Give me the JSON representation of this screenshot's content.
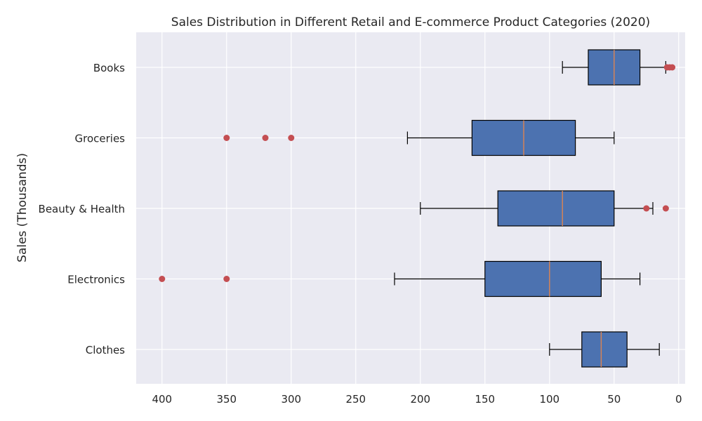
{
  "chart_data": {
    "type": "boxplot",
    "orientation": "horizontal",
    "title": "Sales Distribution in Different Retail and E-commerce Product Categories (2020)",
    "ylabel": "Sales (Thousands)",
    "xlabel": "",
    "x_axis_inverted": true,
    "xlim": [
      420,
      -5
    ],
    "xticks": [
      400,
      350,
      300,
      250,
      200,
      150,
      100,
      50,
      0
    ],
    "grid": true,
    "box_color": "#4c72b0",
    "median_color": "#dd8452",
    "outlier_color": "#c44e52",
    "background_color": "#eaeaf2",
    "categories": [
      "Books",
      "Groceries",
      "Beauty & Health",
      "Electronics",
      "Clothes"
    ],
    "boxes": [
      {
        "category": "Books",
        "whisker_low": 10,
        "q1": 30,
        "median": 50,
        "q3": 70,
        "whisker_high": 90,
        "outliers": [
          5,
          7,
          9
        ]
      },
      {
        "category": "Groceries",
        "whisker_low": 50,
        "q1": 80,
        "median": 120,
        "q3": 160,
        "whisker_high": 210,
        "outliers": [
          300,
          320,
          350
        ]
      },
      {
        "category": "Beauty & Health",
        "whisker_low": 20,
        "q1": 50,
        "median": 90,
        "q3": 140,
        "whisker_high": 200,
        "outliers": [
          10,
          25
        ]
      },
      {
        "category": "Electronics",
        "whisker_low": 30,
        "q1": 60,
        "median": 100,
        "q3": 150,
        "whisker_high": 220,
        "outliers": [
          350,
          400
        ]
      },
      {
        "category": "Clothes",
        "whisker_low": 15,
        "q1": 40,
        "median": 60,
        "q3": 75,
        "whisker_high": 100,
        "outliers": []
      }
    ]
  }
}
